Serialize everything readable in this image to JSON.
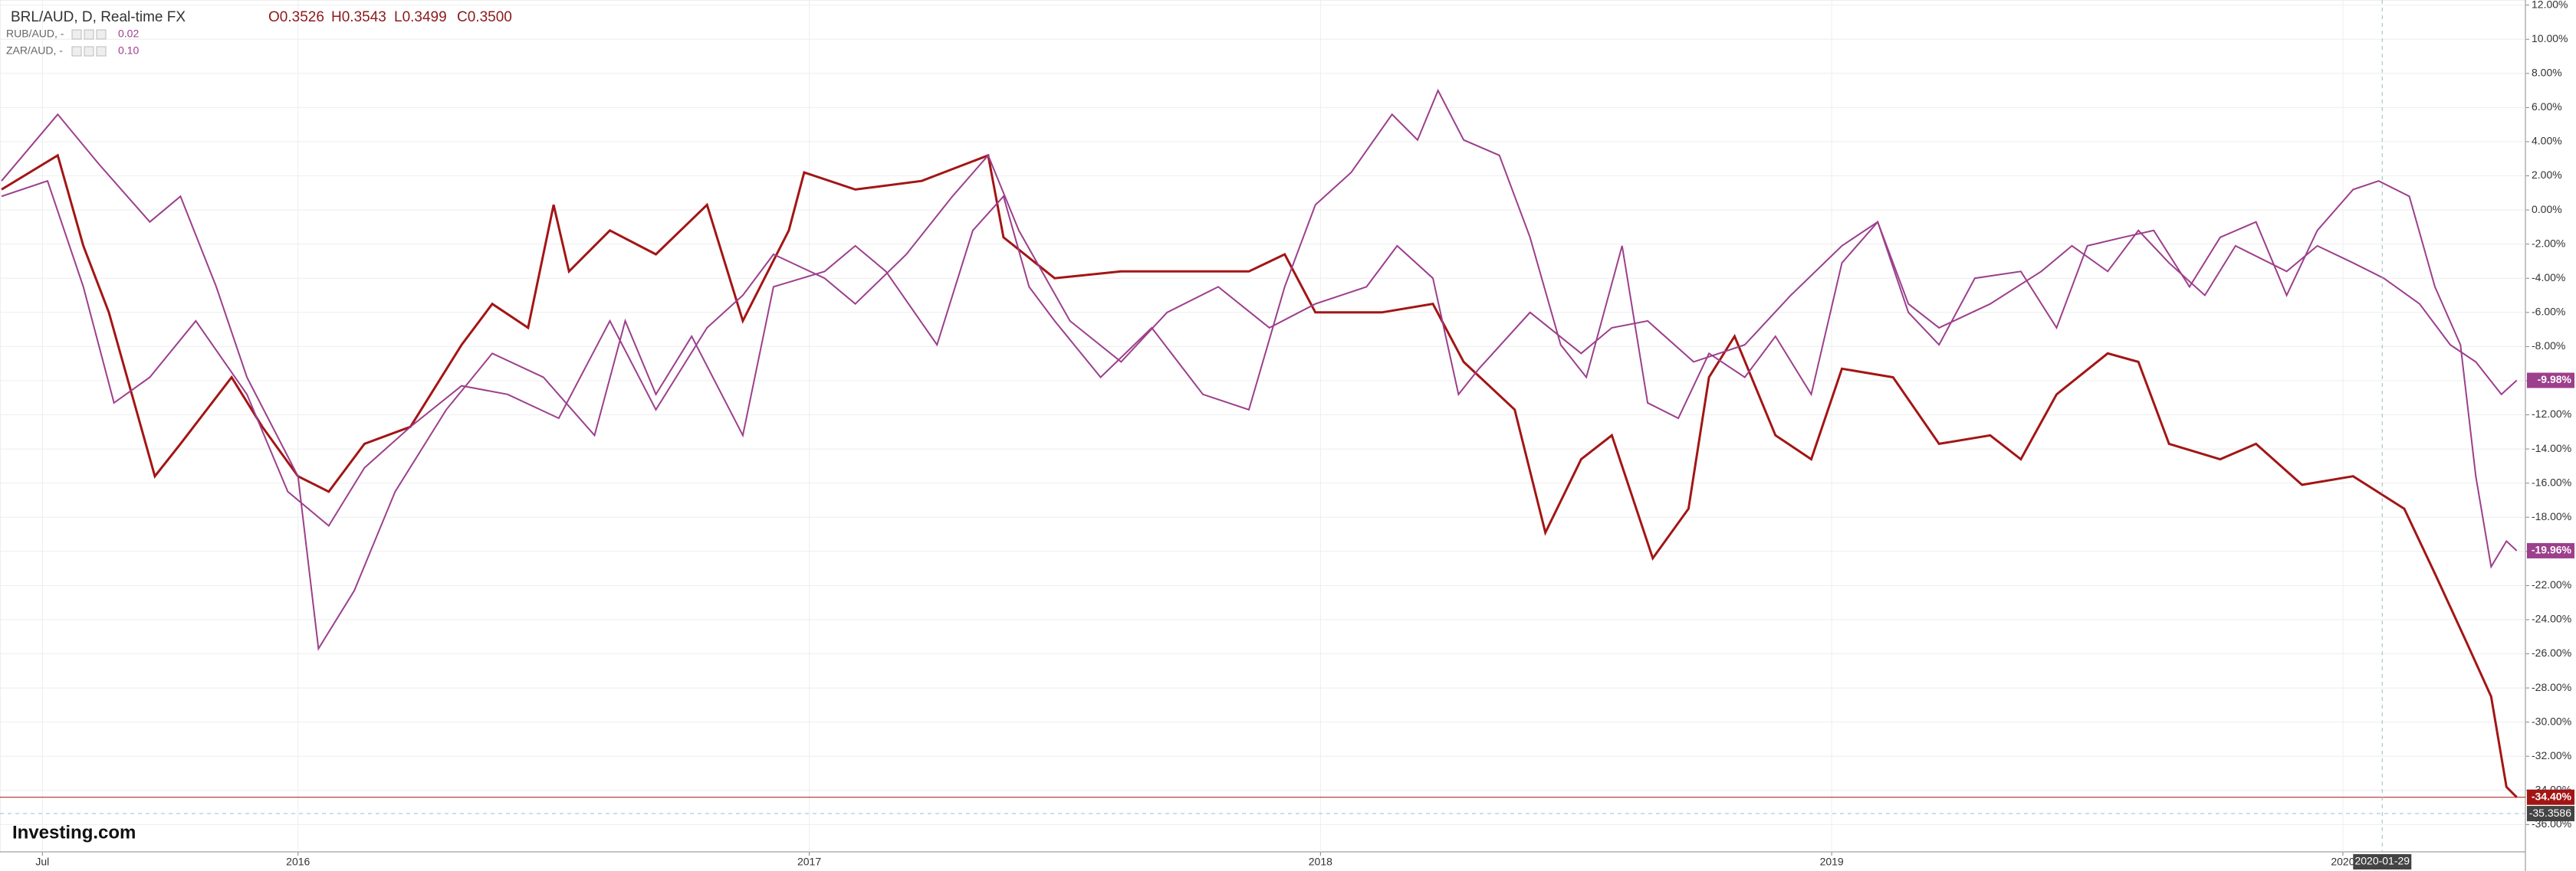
{
  "chart_data": {
    "type": "line",
    "brand": "Investing.com",
    "ohlc": [
      "O0.3526",
      "H0.3543",
      "L0.3499",
      "C0.3500"
    ],
    "xlim": [
      2015.417,
      2020.357
    ],
    "xticks": [
      {
        "value": 2015.5,
        "label": "Jul"
      },
      2016,
      2017,
      2018,
      2019,
      2020
    ],
    "ylim": [
      -37.6,
      12.3
    ],
    "yticks": [
      {
        "value": 12,
        "label": "12.00%"
      },
      {
        "value": 10,
        "label": "10.00%"
      },
      {
        "value": 8,
        "label": "8.00%"
      },
      {
        "value": 6,
        "label": "6.00%"
      },
      {
        "value": 4,
        "label": "4.00%"
      },
      {
        "value": 2,
        "label": "2.00%"
      },
      {
        "value": 0,
        "label": "0.00%"
      },
      {
        "value": -2,
        "label": "-2.00%"
      },
      {
        "value": -4,
        "label": "-4.00%"
      },
      {
        "value": -6,
        "label": "-6.00%"
      },
      {
        "value": -8,
        "label": "-8.00%"
      },
      {
        "value": -10,
        "label": "-10.00%"
      },
      {
        "value": -12,
        "label": "-12.00%"
      },
      {
        "value": -14,
        "label": "-14.00%"
      },
      {
        "value": -16,
        "label": "-16.00%"
      },
      {
        "value": -18,
        "label": "-18.00%"
      },
      {
        "value": -20,
        "label": "-20.00%"
      },
      {
        "value": -22,
        "label": "-22.00%"
      },
      {
        "value": -24,
        "label": "-24.00%"
      },
      {
        "value": -26,
        "label": "-26.00%"
      },
      {
        "value": -28,
        "label": "-28.00%"
      },
      {
        "value": -30,
        "label": "-30.00%"
      },
      {
        "value": -32,
        "label": "-32.00%"
      },
      {
        "value": -34,
        "label": "-34.00%"
      },
      {
        "value": -36,
        "label": "-36.00%"
      }
    ],
    "grid": true,
    "crosshair": {
      "x": {
        "value": 2020.077,
        "label": "2020-01-29"
      },
      "y": {
        "value": -35.3586,
        "label": "-35.3586"
      }
    },
    "series": [
      {
        "name": "BRL/AUD, D, Real-time FX",
        "color": "#a31515",
        "last_value_label": "-34.40%",
        "x": [
          2015.42,
          2015.53,
          2015.58,
          2015.63,
          2015.72,
          2015.77,
          2015.87,
          2015.93,
          2016.0,
          2016.06,
          2016.13,
          2016.22,
          2016.32,
          2016.38,
          2016.45,
          2016.5,
          2016.53,
          2016.61,
          2016.7,
          2016.8,
          2016.87,
          2016.96,
          2016.99,
          2017.09,
          2017.22,
          2017.35,
          2017.38,
          2017.48,
          2017.61,
          2017.73,
          2017.86,
          2017.93,
          2017.99,
          2018.12,
          2018.22,
          2018.28,
          2018.38,
          2018.44,
          2018.51,
          2018.57,
          2018.65,
          2018.72,
          2018.76,
          2018.81,
          2018.89,
          2018.96,
          2019.02,
          2019.12,
          2019.21,
          2019.31,
          2019.37,
          2019.44,
          2019.54,
          2019.6,
          2019.66,
          2019.76,
          2019.83,
          2019.92,
          2020.02,
          2020.12,
          2020.18,
          2020.24,
          2020.29,
          2020.32,
          2020.34
        ],
        "values": [
          1.2,
          3.2,
          -2.1,
          -6.0,
          -15.6,
          -13.7,
          -9.8,
          -12.7,
          -15.6,
          -16.5,
          -13.7,
          -12.7,
          -7.9,
          -5.5,
          -6.9,
          0.3,
          -3.6,
          -1.2,
          -2.6,
          0.3,
          -6.5,
          -1.2,
          2.2,
          1.2,
          1.7,
          3.2,
          -1.6,
          -4.0,
          -3.6,
          -3.6,
          -3.6,
          -2.6,
          -6.0,
          -6.0,
          -5.5,
          -8.9,
          -11.7,
          -18.9,
          -14.6,
          -13.2,
          -20.4,
          -17.5,
          -9.8,
          -7.4,
          -13.2,
          -14.6,
          -9.3,
          -9.8,
          -13.7,
          -13.2,
          -14.6,
          -10.8,
          -8.4,
          -8.9,
          -13.7,
          -14.6,
          -13.7,
          -16.1,
          -15.6,
          -17.5,
          -21.3,
          -25.2,
          -28.5,
          -33.8,
          -34.4
        ]
      },
      {
        "name": "RUB/AUD, -",
        "color": "#9c3f8c",
        "legend_value": "0.02",
        "last_value_label": "-19.96%",
        "x": [
          2015.42,
          2015.53,
          2015.61,
          2015.71,
          2015.77,
          2015.84,
          2015.9,
          2016.0,
          2016.04,
          2016.11,
          2016.19,
          2016.29,
          2016.38,
          2016.48,
          2016.58,
          2016.64,
          2016.7,
          2016.77,
          2016.87,
          2016.93,
          2017.03,
          2017.09,
          2017.15,
          2017.25,
          2017.32,
          2017.38,
          2017.43,
          2017.48,
          2017.57,
          2017.67,
          2017.77,
          2017.86,
          2017.93,
          2017.99,
          2018.06,
          2018.14,
          2018.19,
          2018.23,
          2018.28,
          2018.35,
          2018.41,
          2018.47,
          2018.52,
          2018.59,
          2018.64,
          2018.7,
          2018.76,
          2018.83,
          2018.89,
          2018.96,
          2019.02,
          2019.09,
          2019.15,
          2019.21,
          2019.28,
          2019.37,
          2019.44,
          2019.5,
          2019.57,
          2019.63,
          2019.7,
          2019.76,
          2019.83,
          2019.89,
          2019.95,
          2020.02,
          2020.07,
          2020.13,
          2020.18,
          2020.23,
          2020.26,
          2020.29,
          2020.32,
          2020.34
        ],
        "values": [
          1.7,
          5.6,
          2.7,
          -0.7,
          0.8,
          -4.5,
          -9.8,
          -15.6,
          -25.7,
          -22.3,
          -16.5,
          -11.7,
          -8.4,
          -9.8,
          -13.2,
          -6.5,
          -10.8,
          -7.4,
          -13.2,
          -4.5,
          -3.6,
          -2.1,
          -3.6,
          -7.9,
          -1.2,
          0.8,
          -4.5,
          -6.5,
          -9.8,
          -6.9,
          -10.8,
          -11.7,
          -4.5,
          0.3,
          2.2,
          5.6,
          4.1,
          7.0,
          4.1,
          3.2,
          -1.6,
          -7.9,
          -9.8,
          -2.1,
          -11.3,
          -12.2,
          -8.4,
          -9.8,
          -7.4,
          -10.8,
          -3.1,
          -0.7,
          -6.0,
          -7.9,
          -4.0,
          -3.6,
          -6.9,
          -2.1,
          -1.6,
          -1.2,
          -4.5,
          -1.6,
          -0.7,
          -5.0,
          -1.2,
          1.2,
          1.7,
          0.8,
          -4.5,
          -7.9,
          -15.6,
          -20.9,
          -19.4,
          -19.96
        ]
      },
      {
        "name": "ZAR/AUD, -",
        "color": "#9c3f8c",
        "legend_value": "0.10",
        "last_value_label": "-9.98%",
        "x": [
          2015.42,
          2015.51,
          2015.58,
          2015.64,
          2015.71,
          2015.8,
          2015.9,
          2015.98,
          2016.06,
          2016.13,
          2016.22,
          2016.32,
          2016.41,
          2016.51,
          2016.61,
          2016.7,
          2016.8,
          2016.87,
          2016.93,
          2017.03,
          2017.09,
          2017.19,
          2017.28,
          2017.35,
          2017.41,
          2017.51,
          2017.61,
          2017.7,
          2017.8,
          2017.9,
          2017.99,
          2018.09,
          2018.15,
          2018.22,
          2018.27,
          2018.31,
          2018.41,
          2018.51,
          2018.57,
          2018.64,
          2018.73,
          2018.83,
          2018.92,
          2019.02,
          2019.09,
          2019.15,
          2019.21,
          2019.31,
          2019.41,
          2019.47,
          2019.54,
          2019.6,
          2019.66,
          2019.73,
          2019.79,
          2019.89,
          2019.95,
          2020.02,
          2020.08,
          2020.15,
          2020.21,
          2020.26,
          2020.31,
          2020.34
        ],
        "values": [
          0.8,
          1.7,
          -4.5,
          -11.3,
          -9.8,
          -6.5,
          -10.8,
          -16.5,
          -18.5,
          -15.1,
          -12.7,
          -10.3,
          -10.8,
          -12.2,
          -6.5,
          -11.7,
          -6.9,
          -5.0,
          -2.6,
          -4.0,
          -5.5,
          -2.6,
          0.8,
          3.2,
          -1.2,
          -6.5,
          -8.9,
          -6.0,
          -4.5,
          -6.9,
          -5.5,
          -4.5,
          -2.1,
          -4.0,
          -10.8,
          -9.3,
          -6.0,
          -8.4,
          -6.9,
          -6.5,
          -8.9,
          -7.9,
          -5.0,
          -2.1,
          -0.7,
          -5.5,
          -6.9,
          -5.5,
          -3.6,
          -2.1,
          -3.6,
          -1.2,
          -3.1,
          -5.0,
          -2.1,
          -3.6,
          -2.1,
          -3.1,
          -4.0,
          -5.5,
          -7.9,
          -8.9,
          -10.8,
          -9.98
        ]
      }
    ]
  }
}
